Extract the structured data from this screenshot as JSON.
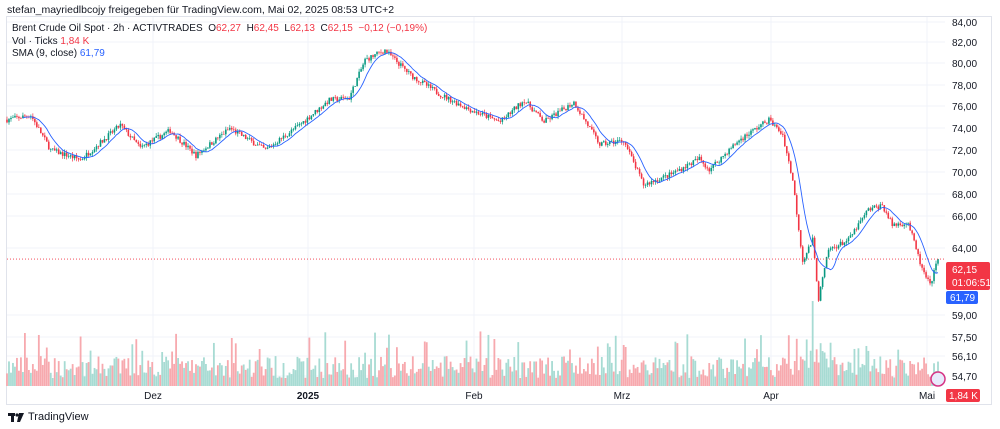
{
  "header": "stefan_mayriedlbcojy freigegeben für TradingView.com, Mai 02, 2025 08:53 UTC+2",
  "legend": {
    "symbol": "Brent Crude Oil Spot · 2h · ACTIVTRADES",
    "o_label": "O",
    "o": "62,27",
    "h_label": "H",
    "h": "62,45",
    "l_label": "L",
    "l": "62,13",
    "c_label": "C",
    "c": "62,15",
    "change": "−0,12 (−0,19%)",
    "vol_label": "Vol · Ticks",
    "vol": "1,84 K",
    "sma_label": "SMA (9, close)",
    "sma": "61,79"
  },
  "brand": "TradingView",
  "colors": {
    "up": "#089981",
    "down": "#f23645",
    "sma": "#2962ff",
    "vol_up": "#a7dbd3",
    "vol_down": "#f7a9ae"
  },
  "chart_data": {
    "type": "candlestick",
    "title": "Brent Crude Oil Spot · 2h · ACTIVTRADES",
    "x_ticks": [
      "Dez",
      "2025",
      "Feb",
      "Mrz",
      "Apr",
      "Mai"
    ],
    "y_ticks": [
      "84,00",
      "82,00",
      "80,00",
      "78,00",
      "76,00",
      "74,00",
      "72,00",
      "70,00",
      "68,00",
      "66,00",
      "64,00",
      "59,00",
      "57,50",
      "56,10",
      "54,70"
    ],
    "ylim": [
      53.5,
      85
    ],
    "price_path_bar_price": [
      [
        0,
        75
      ],
      [
        12,
        75.4
      ],
      [
        22,
        72.2
      ],
      [
        37,
        71.3
      ],
      [
        57,
        74.5
      ],
      [
        67,
        72.4
      ],
      [
        82,
        74
      ],
      [
        95,
        71.7
      ],
      [
        112,
        74.2
      ],
      [
        130,
        72.2
      ],
      [
        147,
        74.5
      ],
      [
        162,
        76.8
      ],
      [
        172,
        77
      ],
      [
        180,
        80.5
      ],
      [
        190,
        81.4
      ],
      [
        203,
        79.1
      ],
      [
        218,
        77.3
      ],
      [
        233,
        75.9
      ],
      [
        248,
        74.8
      ],
      [
        260,
        76.8
      ],
      [
        270,
        74.8
      ],
      [
        285,
        76.6
      ],
      [
        298,
        72.7
      ],
      [
        310,
        73.1
      ],
      [
        320,
        69
      ],
      [
        333,
        69.9
      ],
      [
        348,
        71.4
      ],
      [
        353,
        70.4
      ],
      [
        368,
        73.1
      ],
      [
        383,
        75
      ],
      [
        390,
        73.6
      ],
      [
        395,
        69.4
      ],
      [
        400,
        62
      ],
      [
        405,
        63.9
      ],
      [
        408,
        58.5
      ],
      [
        413,
        63
      ],
      [
        423,
        63.9
      ],
      [
        433,
        66.7
      ],
      [
        440,
        67.1
      ],
      [
        445,
        65.3
      ],
      [
        453,
        65.5
      ],
      [
        460,
        61.2
      ],
      [
        464,
        59.7
      ],
      [
        468,
        62.15
      ]
    ],
    "last_price": "62,15",
    "countdown": "01:06:51",
    "sma_last": "61,79",
    "volume_last": "1,84 K"
  }
}
